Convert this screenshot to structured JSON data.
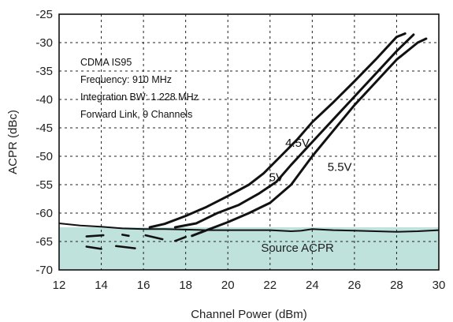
{
  "chart_data": {
    "type": "line",
    "xlabel": "Channel Power (dBm)",
    "ylabel": "ACPR (dBc)",
    "xlim": [
      12,
      30
    ],
    "ylim": [
      -70,
      -25
    ],
    "x_ticks": [
      12,
      14,
      16,
      18,
      20,
      22,
      24,
      26,
      28,
      30
    ],
    "y_ticks": [
      -70,
      -65,
      -60,
      -55,
      -50,
      -45,
      -40,
      -35,
      -30,
      -25
    ],
    "x_tick_labels": [
      "12",
      "14",
      "16",
      "18",
      "20",
      "22",
      "24",
      "26",
      "28",
      "30"
    ],
    "y_tick_labels": [
      "-70",
      "-65",
      "-60",
      "-55",
      "-50",
      "-45",
      "-40",
      "-35",
      "-30",
      "-25"
    ],
    "grid": true,
    "annotations": [
      "CDMA IS95",
      "Frequency: 910 MHz",
      "Integration BW: 1.228 MHz",
      "Forward Link, 9 Channels"
    ],
    "series": [
      {
        "name": "4.5V",
        "x": [
          16.3,
          17,
          18,
          19,
          20,
          21,
          21.7,
          22.5,
          23.3,
          24,
          25,
          26,
          27,
          28,
          28.4
        ],
        "y": [
          -62.5,
          -61.9,
          -60.5,
          -58.9,
          -57,
          -55,
          -53,
          -50,
          -47,
          -44,
          -40.5,
          -36.8,
          -33,
          -29,
          -28.4
        ]
      },
      {
        "name": "5V",
        "x": [
          17.5,
          18.5,
          19.5,
          20.5,
          21.5,
          22.3,
          23,
          24,
          25,
          26,
          27,
          28,
          28.8
        ],
        "y": [
          -62.5,
          -61.8,
          -60,
          -58.6,
          -56.5,
          -54.5,
          -51.5,
          -47.5,
          -43.5,
          -39.5,
          -35.5,
          -31.5,
          -28.6
        ]
      },
      {
        "name": "5.5V",
        "x": [
          18.3,
          19,
          20,
          21,
          22,
          23,
          24,
          25,
          26,
          27,
          28,
          29,
          29.4
        ],
        "y": [
          -64,
          -63,
          -61.6,
          -60,
          -58.2,
          -55,
          -50,
          -45.5,
          -41,
          -37,
          -33,
          -30,
          -29.3
        ]
      },
      {
        "name": "Source ACPR",
        "x": [
          12,
          13,
          14,
          15,
          16,
          17,
          18,
          19,
          20,
          21,
          22,
          23,
          23.5,
          24,
          25,
          26,
          27,
          28,
          29,
          30
        ],
        "y": [
          -61.8,
          -62.2,
          -62.4,
          -62.7,
          -62.8,
          -62.8,
          -62.9,
          -63,
          -63,
          -63,
          -63,
          -63.2,
          -63.1,
          -62.8,
          -63,
          -63.1,
          -63.2,
          -63.3,
          -63.2,
          -63
        ]
      }
    ],
    "low_power_segments": [
      {
        "x": [
          13.3,
          14.1
        ],
        "y": [
          -64.1,
          -63.9
        ]
      },
      {
        "x": [
          13.3,
          14.0
        ],
        "y": [
          -65.9,
          -66.3
        ]
      },
      {
        "x": [
          14.7,
          15.6
        ],
        "y": [
          -65.8,
          -66.2
        ]
      },
      {
        "x": [
          15.0,
          15.3
        ],
        "y": [
          -63.8,
          -64.0
        ]
      },
      {
        "x": [
          16.1,
          16.9
        ],
        "y": [
          -63.9,
          -64.6
        ]
      },
      {
        "x": [
          17.5,
          18.0
        ],
        "y": [
          -64.9,
          -64.2
        ]
      }
    ],
    "regions": [
      {
        "label": "Source ACPR",
        "y_top": -62.5,
        "y_bottom": -70,
        "color": "#bfe2dc"
      }
    ],
    "label_positions_data": {
      "4.5V": {
        "x": 23.3,
        "y": -48.3
      },
      "5V": {
        "x": 22.3,
        "y": -54.4
      },
      "5.5V": {
        "x": 25.3,
        "y": -52.6
      },
      "Source ACPR": {
        "x": 23.3,
        "y": -66.8
      }
    }
  }
}
